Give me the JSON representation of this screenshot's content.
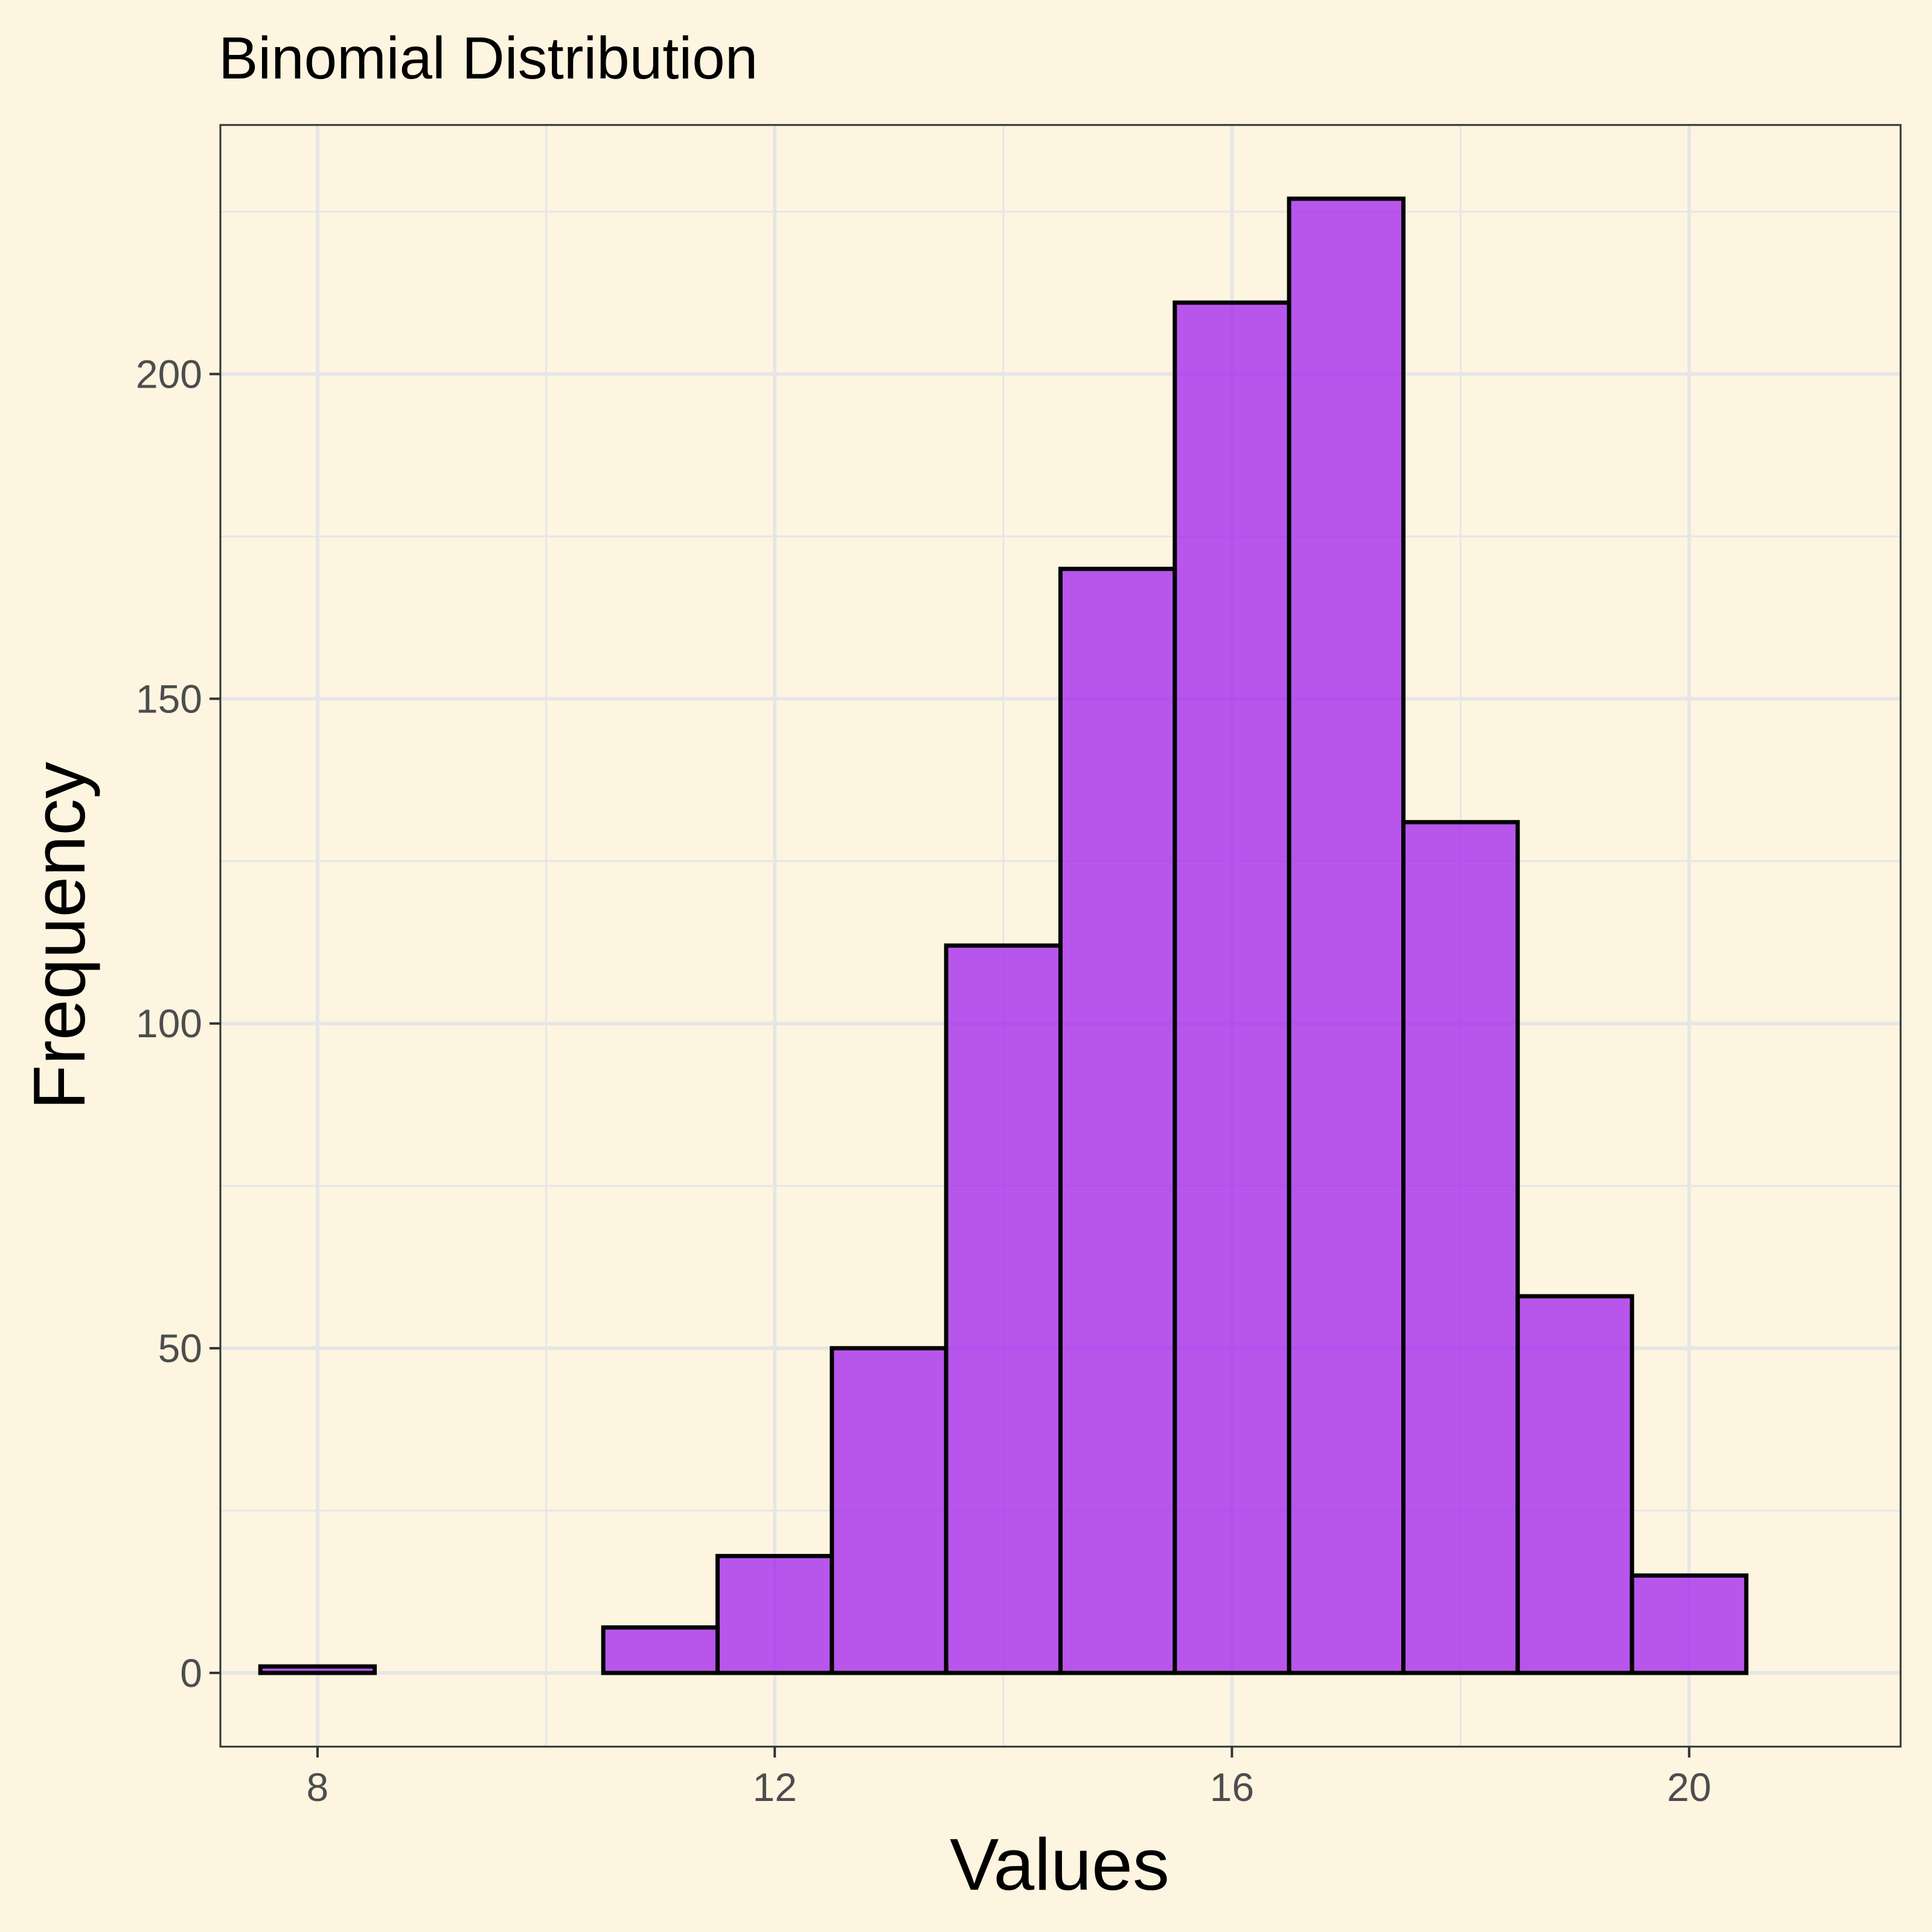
{
  "colors": {
    "background": "#fdf5e0",
    "bar_fill": "#a020f0",
    "bar_stroke": "#000000",
    "grid": "#e6e6e6",
    "panel_border": "#333333"
  },
  "chart_data": {
    "type": "bar",
    "title": "Binomial Distribution",
    "xlabel": "Values",
    "ylabel": "Frequency",
    "bin_width": 1,
    "x": [
      8,
      9,
      10,
      11,
      12,
      13,
      14,
      15,
      16,
      17,
      18,
      19,
      20
    ],
    "values": [
      1,
      0,
      0,
      7,
      18,
      50,
      112,
      170,
      211,
      227,
      131,
      58,
      15
    ],
    "xlim": [
      7.15,
      21.85
    ],
    "ylim": [
      -11.35,
      238.35
    ],
    "xticks": [
      8,
      12,
      16,
      20
    ],
    "xtick_labels": [
      "8",
      "12",
      "16",
      "20"
    ],
    "yticks": [
      0,
      50,
      100,
      150,
      200
    ],
    "ytick_labels": [
      "0",
      "50",
      "100",
      "150",
      "200"
    ],
    "grid": true
  }
}
